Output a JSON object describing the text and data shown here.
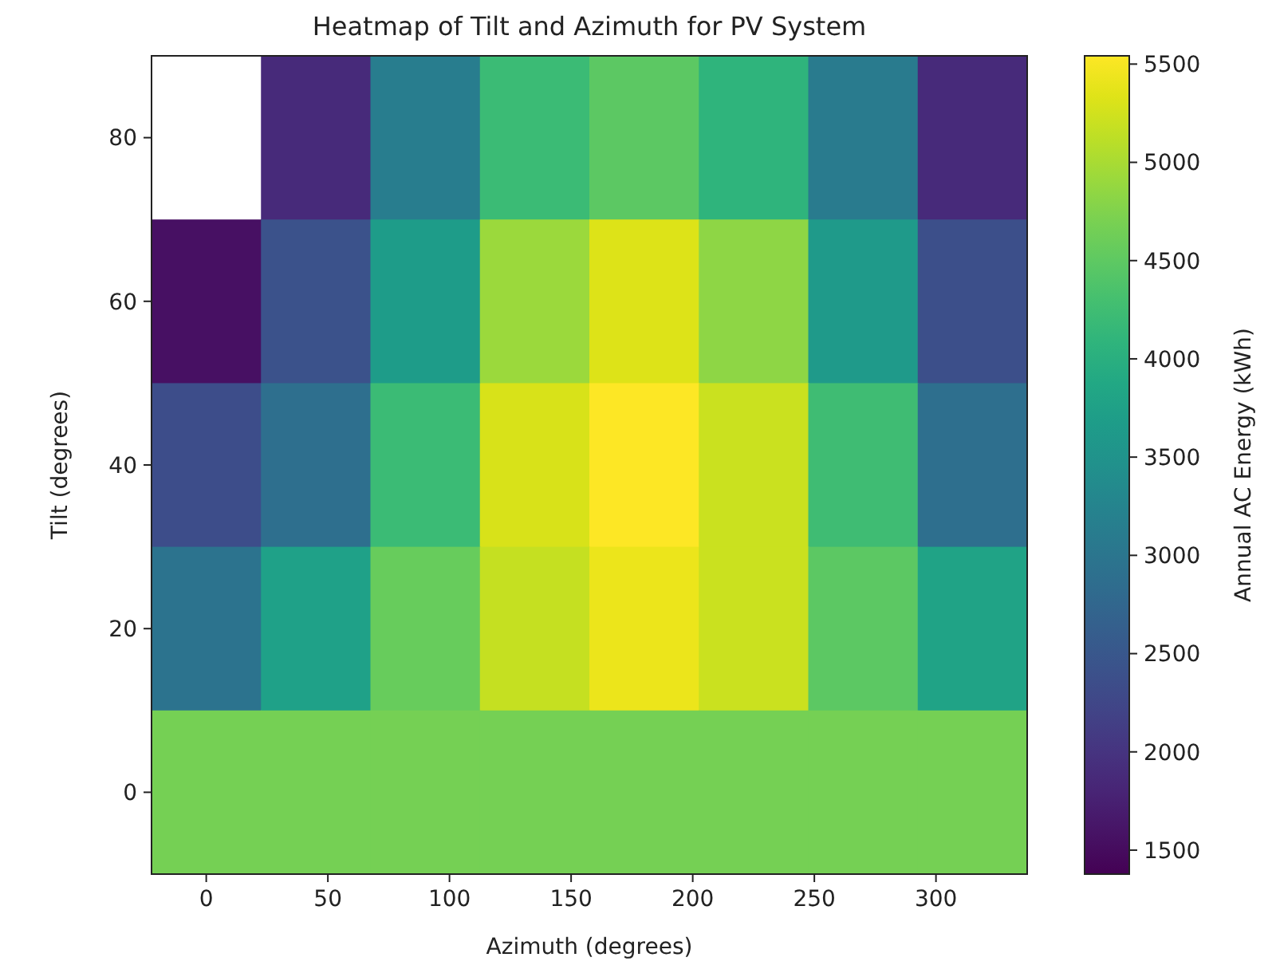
{
  "chart_data": {
    "type": "heatmap",
    "title": "Heatmap of Tilt and Azimuth for PV System",
    "xlabel": "Azimuth (degrees)",
    "ylabel": "Tilt (degrees)",
    "clabel": "Annual AC Energy (kWh)",
    "xlim": [
      -22.5,
      337.5
    ],
    "ylim": [
      -10,
      90
    ],
    "xticks": [
      0,
      50,
      100,
      150,
      200,
      250,
      300
    ],
    "yticks": [
      0,
      20,
      40,
      60,
      80
    ],
    "clim": [
      1378,
      5542
    ],
    "cticks": [
      1500,
      2000,
      2500,
      3000,
      3500,
      4000,
      4500,
      5000,
      5500
    ],
    "cells": [
      [
        null,
        1880,
        3130,
        4210,
        4500,
        4080,
        3090,
        1880
      ],
      [
        1545,
        2420,
        3670,
        4920,
        5330,
        4830,
        3630,
        2380
      ],
      [
        2340,
        2880,
        4210,
        5290,
        5542,
        5210,
        4250,
        2880
      ],
      [
        2960,
        3750,
        4580,
        5170,
        5420,
        5210,
        4500,
        3790
      ],
      [
        4670,
        4670,
        4670,
        4670,
        4670,
        4670,
        4670,
        4670
      ]
    ]
  }
}
